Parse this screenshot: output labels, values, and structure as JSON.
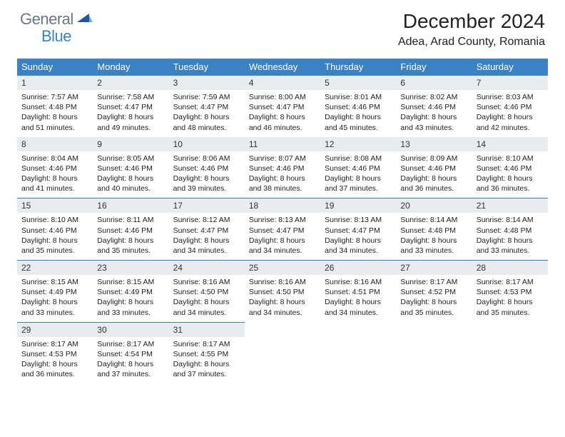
{
  "logo": {
    "text1": "General",
    "text2": "Blue"
  },
  "title": "December 2024",
  "location": "Adea, Arad County, Romania",
  "colors": {
    "header_bg": "#3b82c4",
    "daynum_bg": "#e9ecef",
    "logo_gray": "#6b7680",
    "logo_blue": "#3b82c4"
  },
  "dayNames": [
    "Sunday",
    "Monday",
    "Tuesday",
    "Wednesday",
    "Thursday",
    "Friday",
    "Saturday"
  ],
  "weeks": [
    [
      {
        "n": "1",
        "sr": "Sunrise: 7:57 AM",
        "ss": "Sunset: 4:48 PM",
        "d1": "Daylight: 8 hours",
        "d2": "and 51 minutes."
      },
      {
        "n": "2",
        "sr": "Sunrise: 7:58 AM",
        "ss": "Sunset: 4:47 PM",
        "d1": "Daylight: 8 hours",
        "d2": "and 49 minutes."
      },
      {
        "n": "3",
        "sr": "Sunrise: 7:59 AM",
        "ss": "Sunset: 4:47 PM",
        "d1": "Daylight: 8 hours",
        "d2": "and 48 minutes."
      },
      {
        "n": "4",
        "sr": "Sunrise: 8:00 AM",
        "ss": "Sunset: 4:47 PM",
        "d1": "Daylight: 8 hours",
        "d2": "and 46 minutes."
      },
      {
        "n": "5",
        "sr": "Sunrise: 8:01 AM",
        "ss": "Sunset: 4:46 PM",
        "d1": "Daylight: 8 hours",
        "d2": "and 45 minutes."
      },
      {
        "n": "6",
        "sr": "Sunrise: 8:02 AM",
        "ss": "Sunset: 4:46 PM",
        "d1": "Daylight: 8 hours",
        "d2": "and 43 minutes."
      },
      {
        "n": "7",
        "sr": "Sunrise: 8:03 AM",
        "ss": "Sunset: 4:46 PM",
        "d1": "Daylight: 8 hours",
        "d2": "and 42 minutes."
      }
    ],
    [
      {
        "n": "8",
        "sr": "Sunrise: 8:04 AM",
        "ss": "Sunset: 4:46 PM",
        "d1": "Daylight: 8 hours",
        "d2": "and 41 minutes."
      },
      {
        "n": "9",
        "sr": "Sunrise: 8:05 AM",
        "ss": "Sunset: 4:46 PM",
        "d1": "Daylight: 8 hours",
        "d2": "and 40 minutes."
      },
      {
        "n": "10",
        "sr": "Sunrise: 8:06 AM",
        "ss": "Sunset: 4:46 PM",
        "d1": "Daylight: 8 hours",
        "d2": "and 39 minutes."
      },
      {
        "n": "11",
        "sr": "Sunrise: 8:07 AM",
        "ss": "Sunset: 4:46 PM",
        "d1": "Daylight: 8 hours",
        "d2": "and 38 minutes."
      },
      {
        "n": "12",
        "sr": "Sunrise: 8:08 AM",
        "ss": "Sunset: 4:46 PM",
        "d1": "Daylight: 8 hours",
        "d2": "and 37 minutes."
      },
      {
        "n": "13",
        "sr": "Sunrise: 8:09 AM",
        "ss": "Sunset: 4:46 PM",
        "d1": "Daylight: 8 hours",
        "d2": "and 36 minutes."
      },
      {
        "n": "14",
        "sr": "Sunrise: 8:10 AM",
        "ss": "Sunset: 4:46 PM",
        "d1": "Daylight: 8 hours",
        "d2": "and 36 minutes."
      }
    ],
    [
      {
        "n": "15",
        "sr": "Sunrise: 8:10 AM",
        "ss": "Sunset: 4:46 PM",
        "d1": "Daylight: 8 hours",
        "d2": "and 35 minutes."
      },
      {
        "n": "16",
        "sr": "Sunrise: 8:11 AM",
        "ss": "Sunset: 4:46 PM",
        "d1": "Daylight: 8 hours",
        "d2": "and 35 minutes."
      },
      {
        "n": "17",
        "sr": "Sunrise: 8:12 AM",
        "ss": "Sunset: 4:47 PM",
        "d1": "Daylight: 8 hours",
        "d2": "and 34 minutes."
      },
      {
        "n": "18",
        "sr": "Sunrise: 8:13 AM",
        "ss": "Sunset: 4:47 PM",
        "d1": "Daylight: 8 hours",
        "d2": "and 34 minutes."
      },
      {
        "n": "19",
        "sr": "Sunrise: 8:13 AM",
        "ss": "Sunset: 4:47 PM",
        "d1": "Daylight: 8 hours",
        "d2": "and 34 minutes."
      },
      {
        "n": "20",
        "sr": "Sunrise: 8:14 AM",
        "ss": "Sunset: 4:48 PM",
        "d1": "Daylight: 8 hours",
        "d2": "and 33 minutes."
      },
      {
        "n": "21",
        "sr": "Sunrise: 8:14 AM",
        "ss": "Sunset: 4:48 PM",
        "d1": "Daylight: 8 hours",
        "d2": "and 33 minutes."
      }
    ],
    [
      {
        "n": "22",
        "sr": "Sunrise: 8:15 AM",
        "ss": "Sunset: 4:49 PM",
        "d1": "Daylight: 8 hours",
        "d2": "and 33 minutes."
      },
      {
        "n": "23",
        "sr": "Sunrise: 8:15 AM",
        "ss": "Sunset: 4:49 PM",
        "d1": "Daylight: 8 hours",
        "d2": "and 33 minutes."
      },
      {
        "n": "24",
        "sr": "Sunrise: 8:16 AM",
        "ss": "Sunset: 4:50 PM",
        "d1": "Daylight: 8 hours",
        "d2": "and 34 minutes."
      },
      {
        "n": "25",
        "sr": "Sunrise: 8:16 AM",
        "ss": "Sunset: 4:50 PM",
        "d1": "Daylight: 8 hours",
        "d2": "and 34 minutes."
      },
      {
        "n": "26",
        "sr": "Sunrise: 8:16 AM",
        "ss": "Sunset: 4:51 PM",
        "d1": "Daylight: 8 hours",
        "d2": "and 34 minutes."
      },
      {
        "n": "27",
        "sr": "Sunrise: 8:17 AM",
        "ss": "Sunset: 4:52 PM",
        "d1": "Daylight: 8 hours",
        "d2": "and 35 minutes."
      },
      {
        "n": "28",
        "sr": "Sunrise: 8:17 AM",
        "ss": "Sunset: 4:53 PM",
        "d1": "Daylight: 8 hours",
        "d2": "and 35 minutes."
      }
    ],
    [
      {
        "n": "29",
        "sr": "Sunrise: 8:17 AM",
        "ss": "Sunset: 4:53 PM",
        "d1": "Daylight: 8 hours",
        "d2": "and 36 minutes."
      },
      {
        "n": "30",
        "sr": "Sunrise: 8:17 AM",
        "ss": "Sunset: 4:54 PM",
        "d1": "Daylight: 8 hours",
        "d2": "and 37 minutes."
      },
      {
        "n": "31",
        "sr": "Sunrise: 8:17 AM",
        "ss": "Sunset: 4:55 PM",
        "d1": "Daylight: 8 hours",
        "d2": "and 37 minutes."
      },
      null,
      null,
      null,
      null
    ]
  ]
}
